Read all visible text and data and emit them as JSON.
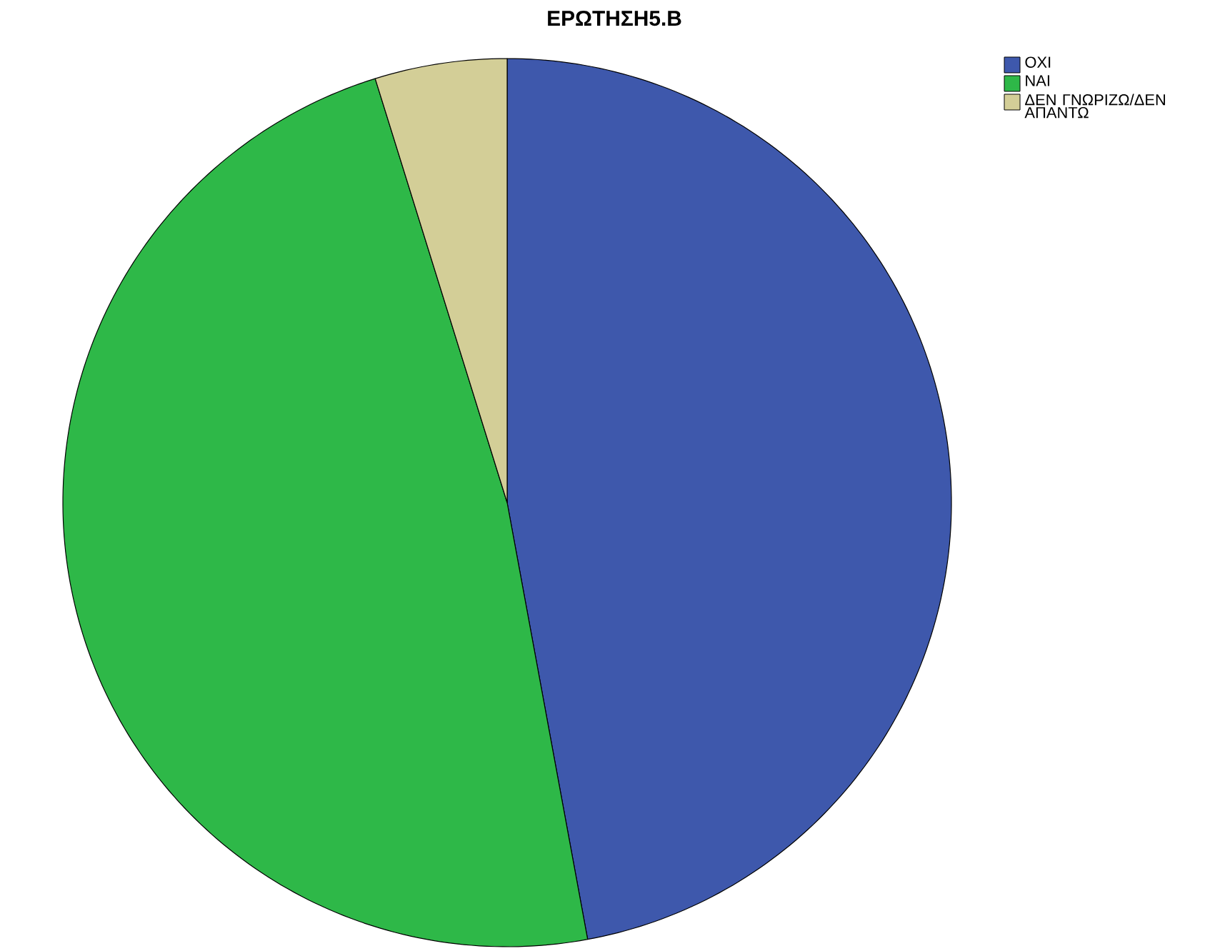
{
  "chart_data": {
    "type": "pie",
    "title": "ΕΡΩΤΗΣΗ5.Β",
    "categories": [
      "ΟΧΙ",
      "ΝΑΙ",
      "ΔΕΝ ΓΝΩΡΙΖΩ/ΔΕΝ ΑΠΑΝΤΩ"
    ],
    "values": [
      47.1,
      48.1,
      4.8
    ],
    "colors": [
      "#3e58ac",
      "#2eb848",
      "#d3ce97"
    ],
    "legend": "top right"
  }
}
